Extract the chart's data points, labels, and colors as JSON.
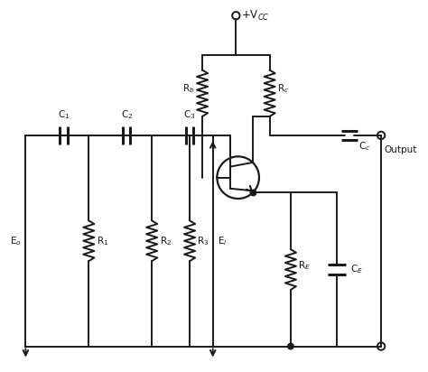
{
  "bg_color": "#ffffff",
  "line_color": "#1a1a1a",
  "line_width": 1.4,
  "fig_width": 4.74,
  "fig_height": 4.12,
  "dpi": 100,
  "labels": {
    "VCC": "+V$_{CC}$",
    "Rb": "R$_b$",
    "Rc": "R$_c$",
    "Cc": "C$_c$",
    "C1": "C$_1$",
    "C2": "C$_2$",
    "C3": "C$_3$",
    "R1": "R$_1$",
    "R2": "R$_2$",
    "R3": "R$_3$",
    "Eo": "E$_o$",
    "Ei": "E$_i$",
    "RE": "R$_E$",
    "CE": "C$_E$",
    "Output": "Output"
  }
}
